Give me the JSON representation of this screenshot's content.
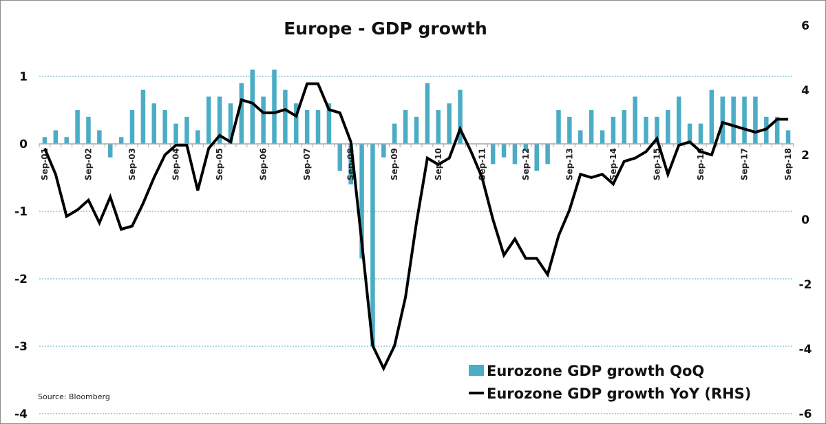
{
  "chart_data": {
    "type": "bar+line",
    "title": "Europe - GDP growth",
    "source": "Source: Bloomberg",
    "categories": [
      "Sep-01",
      "Dec-01",
      "Mar-02",
      "Jun-02",
      "Sep-02",
      "Dec-02",
      "Mar-03",
      "Jun-03",
      "Sep-03",
      "Dec-03",
      "Mar-04",
      "Jun-04",
      "Sep-04",
      "Dec-04",
      "Mar-05",
      "Jun-05",
      "Sep-05",
      "Dec-05",
      "Mar-06",
      "Jun-06",
      "Sep-06",
      "Dec-06",
      "Mar-07",
      "Jun-07",
      "Sep-07",
      "Dec-07",
      "Mar-08",
      "Jun-08",
      "Sep-08",
      "Dec-08",
      "Mar-09",
      "Jun-09",
      "Sep-09",
      "Dec-09",
      "Mar-10",
      "Jun-10",
      "Sep-10",
      "Dec-10",
      "Mar-11",
      "Jun-11",
      "Sep-11",
      "Dec-11",
      "Mar-12",
      "Jun-12",
      "Sep-12",
      "Dec-12",
      "Mar-13",
      "Jun-13",
      "Sep-13",
      "Dec-13",
      "Mar-14",
      "Jun-14",
      "Sep-14",
      "Dec-14",
      "Mar-15",
      "Jun-15",
      "Sep-15",
      "Dec-15",
      "Mar-16",
      "Jun-16",
      "Sep-16",
      "Dec-16",
      "Mar-17",
      "Jun-17",
      "Sep-17",
      "Dec-17",
      "Mar-18",
      "Jun-18",
      "Sep-18"
    ],
    "x_tick_labels": [
      "Sep-01",
      "Sep-02",
      "Sep-03",
      "Sep-04",
      "Sep-05",
      "Sep-06",
      "Sep-07",
      "Sep-08",
      "Sep-09",
      "Sep-10",
      "Sep-11",
      "Sep-12",
      "Sep-13",
      "Sep-14",
      "Sep-15",
      "Sep-16",
      "Sep-17",
      "Sep-18"
    ],
    "series": [
      {
        "name": "Eurozone GDP growth QoQ",
        "type": "bar",
        "axis": "left",
        "color": "#4bacc6",
        "values": [
          0.1,
          0.2,
          0.1,
          0.5,
          0.4,
          0.2,
          -0.2,
          0.1,
          0.5,
          0.8,
          0.6,
          0.5,
          0.3,
          0.4,
          0.2,
          0.7,
          0.7,
          0.6,
          0.9,
          1.1,
          0.7,
          1.1,
          0.8,
          0.6,
          0.5,
          0.5,
          0.6,
          -0.4,
          -0.6,
          -1.7,
          -3.0,
          -0.2,
          0.3,
          0.5,
          0.4,
          0.9,
          0.5,
          0.6,
          0.8,
          0.0,
          0.0,
          -0.3,
          -0.2,
          -0.3,
          -0.1,
          -0.4,
          -0.3,
          0.5,
          0.4,
          0.2,
          0.5,
          0.2,
          0.4,
          0.5,
          0.7,
          0.4,
          0.4,
          0.5,
          0.7,
          0.3,
          0.3,
          0.8,
          0.7,
          0.7,
          0.7,
          0.7,
          0.4,
          0.4,
          0.2
        ]
      },
      {
        "name": "Eurozone GDP growth YoY (RHS)",
        "type": "line",
        "axis": "right",
        "color": "#000000",
        "values": [
          2.2,
          1.4,
          0.1,
          0.3,
          0.6,
          -0.1,
          0.7,
          -0.3,
          -0.2,
          0.5,
          1.3,
          2.0,
          2.3,
          2.3,
          0.9,
          2.2,
          2.6,
          2.4,
          3.7,
          3.6,
          3.3,
          3.3,
          3.4,
          3.2,
          4.2,
          4.2,
          3.4,
          3.3,
          2.4,
          -0.7,
          -3.9,
          -4.6,
          -3.9,
          -2.4,
          -0.1,
          1.9,
          1.7,
          1.9,
          2.8,
          2.1,
          1.3,
          0.0,
          -1.1,
          -0.6,
          -1.2,
          -1.2,
          -1.7,
          -0.5,
          0.3,
          1.4,
          1.3,
          1.4,
          1.1,
          1.8,
          1.9,
          2.1,
          2.5,
          1.4,
          2.3,
          2.4,
          2.1,
          2.0,
          3.0,
          2.9,
          2.8,
          2.7,
          2.8,
          3.1,
          3.1
        ]
      }
    ],
    "y_left": {
      "ticks": [
        1,
        0,
        -1,
        -2,
        -3,
        -4
      ],
      "tick_labels": [
        "1",
        "0",
        "-1",
        "-2",
        "-3",
        "-4"
      ],
      "ylim": [
        -4,
        1
      ]
    },
    "y_right": {
      "ticks": [
        6,
        4,
        2,
        0,
        -2,
        -4,
        -6
      ],
      "tick_labels": [
        "6",
        "4",
        "2",
        "0",
        "-2",
        "-4",
        "-6"
      ],
      "ylim": [
        -6,
        6
      ]
    },
    "grid": true,
    "legend": {
      "placement": "bottom-right",
      "items": [
        "Eurozone GDP growth QoQ",
        "Eurozone GDP growth YoY (RHS)"
      ]
    },
    "xlabel": "",
    "ylabel": ""
  }
}
